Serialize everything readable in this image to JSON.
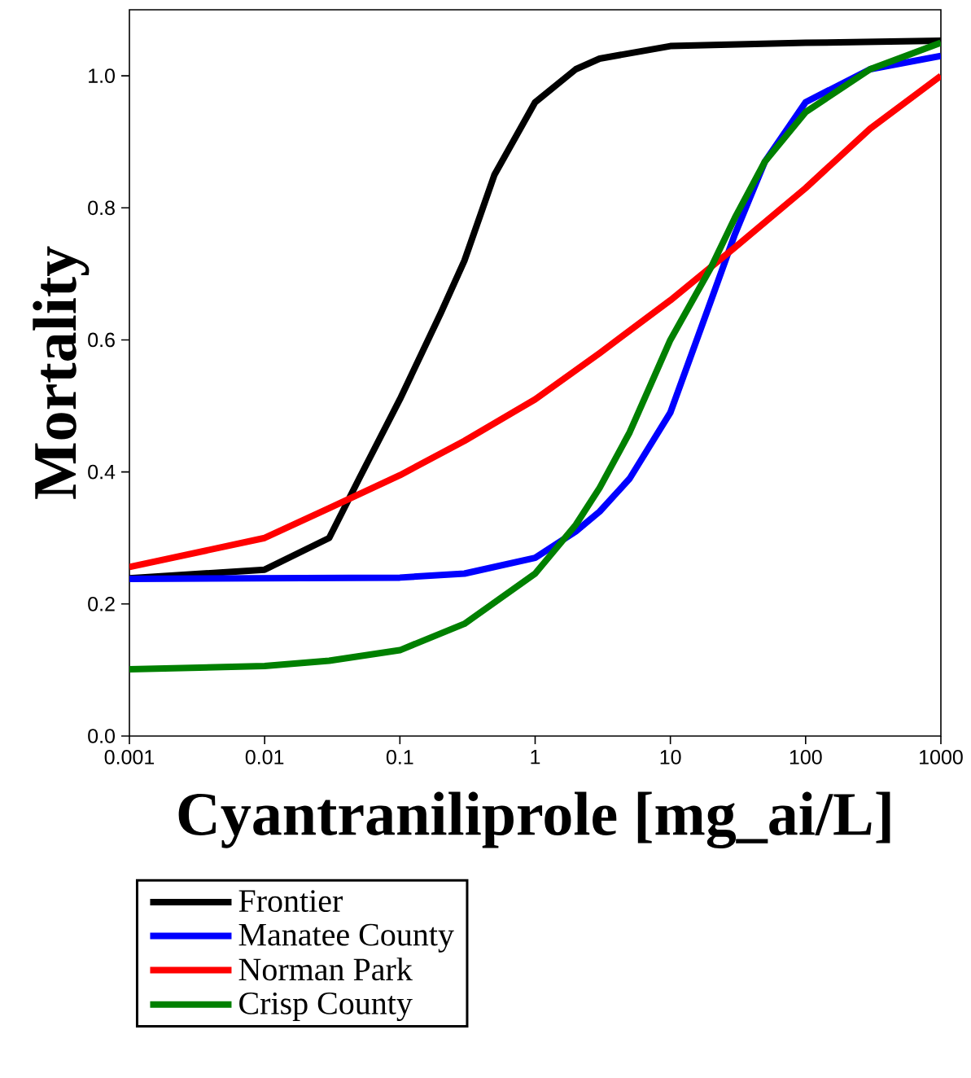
{
  "chart_data": {
    "type": "line",
    "xlabel": "Cyantraniliprole [mg_ai/L]",
    "ylabel": "Mortality",
    "log": "x",
    "xlim": [
      0.001,
      1000
    ],
    "ylim": [
      0,
      1.1
    ],
    "xticks": [
      0.001,
      0.01,
      0.1,
      1,
      10,
      100,
      1000
    ],
    "yticks": [
      {
        "value": 0,
        "label": "0.0"
      },
      0.2,
      0.4,
      0.6,
      0.8,
      {
        "value": 1,
        "label": "1.0"
      }
    ],
    "legend": "bottom",
    "series": [
      {
        "name": "Frontier",
        "color": "#000000",
        "x": [
          0.001,
          0.01,
          0.03,
          0.05,
          0.1,
          0.2,
          0.3,
          0.5,
          1,
          2,
          3,
          10,
          100,
          1000
        ],
        "values": [
          0.239,
          0.252,
          0.3,
          0.39,
          0.51,
          0.64,
          0.72,
          0.85,
          0.96,
          1.01,
          1.026,
          1.045,
          1.05,
          1.053
        ]
      },
      {
        "name": "Manatee County",
        "color": "#0000ff",
        "x": [
          0.001,
          0.1,
          0.3,
          1,
          2,
          3,
          5,
          10,
          20,
          30,
          50,
          100,
          300,
          1000
        ],
        "values": [
          0.238,
          0.24,
          0.246,
          0.27,
          0.31,
          0.34,
          0.39,
          0.49,
          0.66,
          0.76,
          0.87,
          0.96,
          1.01,
          1.03
        ]
      },
      {
        "name": "Norman Park",
        "color": "#ff0000",
        "x": [
          0.001,
          0.01,
          0.03,
          0.1,
          0.3,
          1,
          3,
          10,
          30,
          100,
          300,
          1000
        ],
        "values": [
          0.256,
          0.3,
          0.345,
          0.395,
          0.447,
          0.51,
          0.58,
          0.66,
          0.74,
          0.83,
          0.92,
          1.0
        ]
      },
      {
        "name": "Crisp County",
        "color": "#008000",
        "x": [
          0.001,
          0.01,
          0.03,
          0.1,
          0.3,
          1,
          2,
          3,
          5,
          10,
          20,
          30,
          50,
          100,
          300,
          1000
        ],
        "values": [
          0.101,
          0.106,
          0.114,
          0.13,
          0.17,
          0.246,
          0.32,
          0.376,
          0.46,
          0.6,
          0.71,
          0.785,
          0.87,
          0.945,
          1.01,
          1.05
        ]
      }
    ]
  }
}
